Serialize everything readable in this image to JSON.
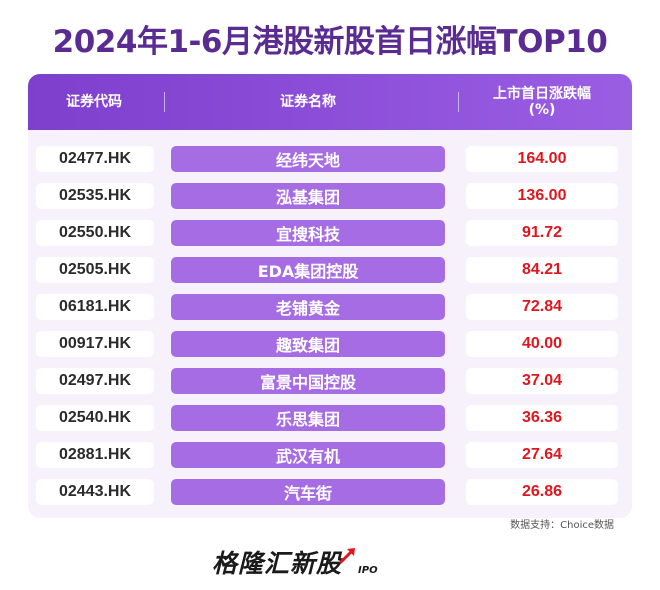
{
  "title": "2024年1-6月港股新股首日涨幅TOP10",
  "header": {
    "code_label": "证券代码",
    "name_label": "证券名称",
    "pct_label": "上市首日涨跌幅 (%)"
  },
  "source": "数据支持：Choice数据",
  "brand": {
    "name": "格隆汇新股",
    "sub": "IPO"
  },
  "colors": {
    "title": "#5a2c91",
    "header": "#7e3fcd",
    "name_cell": "#a66ce3",
    "value": "#e0161e"
  },
  "chart_data": {
    "type": "table",
    "columns": [
      "证券代码",
      "证券名称",
      "上市首日涨跌幅 (%)"
    ],
    "rows": [
      {
        "code": "02477.HK",
        "name": "经纬天地",
        "pct": "164.00"
      },
      {
        "code": "02535.HK",
        "name": "泓基集团",
        "pct": "136.00"
      },
      {
        "code": "02550.HK",
        "name": "宜搜科技",
        "pct": "91.72"
      },
      {
        "code": "02505.HK",
        "name": "EDA集团控股",
        "pct": "84.21"
      },
      {
        "code": "06181.HK",
        "name": "老铺黄金",
        "pct": "72.84"
      },
      {
        "code": "00917.HK",
        "name": "趣致集团",
        "pct": "40.00"
      },
      {
        "code": "02497.HK",
        "name": "富景中国控股",
        "pct": "37.04"
      },
      {
        "code": "02540.HK",
        "name": "乐思集团",
        "pct": "36.36"
      },
      {
        "code": "02881.HK",
        "name": "武汉有机",
        "pct": "27.64"
      },
      {
        "code": "02443.HK",
        "name": "汽车街",
        "pct": "26.86"
      }
    ]
  }
}
